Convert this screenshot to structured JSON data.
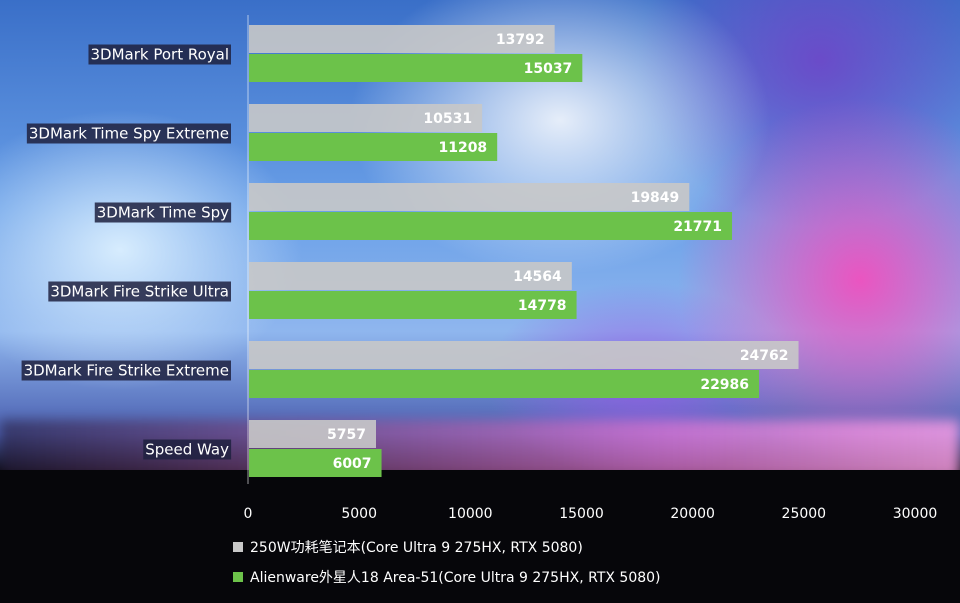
{
  "chart_data": {
    "type": "bar",
    "orientation": "horizontal",
    "categories": [
      "3DMark Port Royal",
      "3DMark Time Spy Extreme",
      "3DMark Time Spy",
      "3DMark Fire Strike Ultra",
      "3DMark Fire Strike Extreme",
      "Speed Way"
    ],
    "series": [
      {
        "name": "250W功耗笔记本(Core Ultra 9 275HX, RTX 5080)",
        "color": "#c8c8c8",
        "values": [
          13792,
          10531,
          19849,
          14564,
          24762,
          5757
        ]
      },
      {
        "name": "Alienware外星人18 Area-51(Core Ultra 9 275HX, RTX 5080)",
        "color": "#6cc24a",
        "values": [
          15037,
          11208,
          21771,
          14778,
          22986,
          6007
        ]
      }
    ],
    "xlim": [
      0,
      30000
    ],
    "xticks": [
      "0",
      "5000",
      "10000",
      "15000",
      "20000",
      "25000",
      "30000"
    ],
    "grid": false,
    "legend_position": "bottom"
  }
}
